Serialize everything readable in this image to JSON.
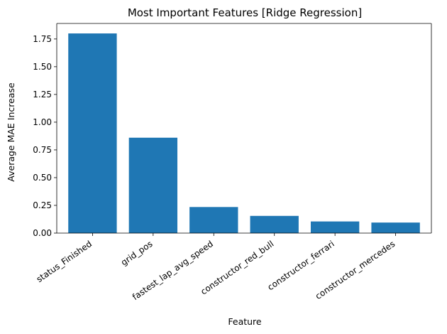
{
  "chart_data": {
    "type": "bar",
    "title": "Most Important Features [Ridge Regression]",
    "xlabel": "Feature",
    "ylabel": "Average MAE Increase",
    "categories": [
      "status_Finished",
      "grid_pos",
      "fastest_lap_avg_speed",
      "constructor_red_bull",
      "constructor_ferrari",
      "constructor_mercedes"
    ],
    "values": [
      1.8,
      0.86,
      0.235,
      0.155,
      0.105,
      0.095
    ],
    "ylim": [
      0,
      1.89
    ],
    "yticks": [
      0.0,
      0.25,
      0.5,
      0.75,
      1.0,
      1.25,
      1.5,
      1.75
    ],
    "ytick_labels": [
      "0.00",
      "0.25",
      "0.50",
      "0.75",
      "1.00",
      "1.25",
      "1.50",
      "1.75"
    ],
    "grid": false,
    "bar_color": "#1f77b4"
  }
}
